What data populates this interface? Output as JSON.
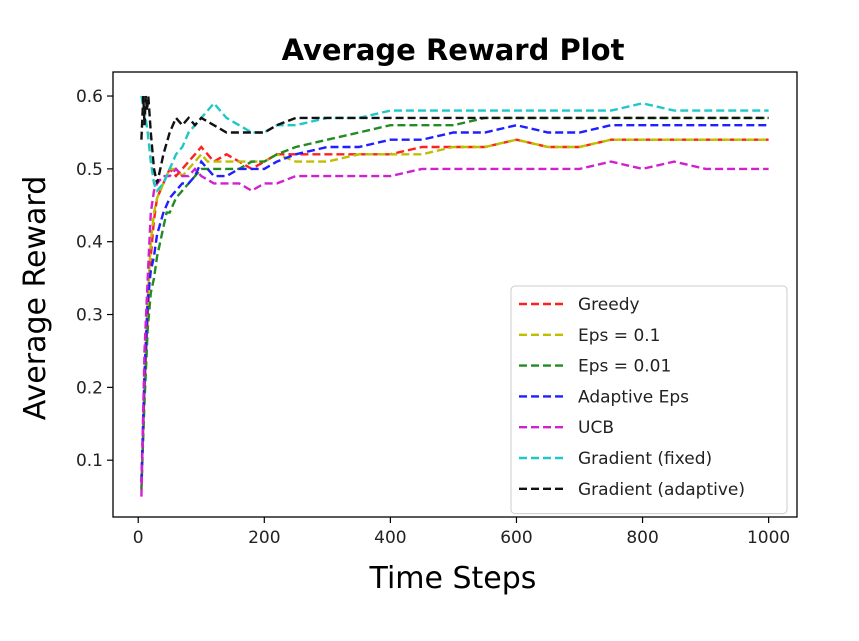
{
  "chart_data": {
    "type": "line",
    "title": "Average Reward Plot",
    "xlabel": "Time Steps",
    "ylabel": "Average Reward",
    "xlim": [
      -40,
      1045
    ],
    "ylim": [
      0.022,
      0.633
    ],
    "xticks": [
      0,
      200,
      400,
      600,
      800,
      1000
    ],
    "yticks": [
      0.1,
      0.2,
      0.3,
      0.4,
      0.5,
      0.6
    ],
    "xtick_labels": [
      "0",
      "200",
      "400",
      "600",
      "800",
      "1000"
    ],
    "ytick_labels": [
      "0.1",
      "0.2",
      "0.3",
      "0.4",
      "0.5",
      "0.6"
    ],
    "line_style": "dashed",
    "grid": false,
    "legend_position": "lower right",
    "series": [
      {
        "name": "Greedy",
        "color": "#ff2020",
        "x": [
          5,
          10,
          15,
          20,
          25,
          30,
          40,
          50,
          60,
          70,
          80,
          90,
          100,
          110,
          120,
          140,
          160,
          180,
          200,
          220,
          250,
          300,
          350,
          400,
          450,
          500,
          550,
          600,
          650,
          700,
          750,
          800,
          850,
          900,
          950,
          1000
        ],
        "y": [
          0.07,
          0.2,
          0.3,
          0.38,
          0.43,
          0.46,
          0.48,
          0.5,
          0.49,
          0.5,
          0.51,
          0.52,
          0.53,
          0.52,
          0.51,
          0.52,
          0.51,
          0.5,
          0.51,
          0.52,
          0.52,
          0.52,
          0.52,
          0.52,
          0.53,
          0.53,
          0.53,
          0.54,
          0.53,
          0.53,
          0.54,
          0.54,
          0.54,
          0.54,
          0.54,
          0.54
        ]
      },
      {
        "name": "Eps = 0.1",
        "color": "#bfbf00",
        "x": [
          5,
          10,
          15,
          20,
          25,
          30,
          40,
          50,
          60,
          70,
          80,
          90,
          100,
          110,
          120,
          140,
          160,
          180,
          200,
          220,
          250,
          300,
          350,
          400,
          450,
          500,
          550,
          600,
          650,
          700,
          750,
          800,
          850,
          900,
          950,
          1000
        ],
        "y": [
          0.06,
          0.2,
          0.32,
          0.4,
          0.44,
          0.46,
          0.48,
          0.5,
          0.5,
          0.49,
          0.5,
          0.51,
          0.52,
          0.51,
          0.51,
          0.51,
          0.51,
          0.51,
          0.51,
          0.52,
          0.51,
          0.51,
          0.52,
          0.52,
          0.52,
          0.53,
          0.53,
          0.54,
          0.53,
          0.53,
          0.54,
          0.54,
          0.54,
          0.54,
          0.54,
          0.54
        ]
      },
      {
        "name": "Eps = 0.01",
        "color": "#228b22",
        "x": [
          5,
          10,
          15,
          20,
          25,
          30,
          35,
          40,
          45,
          50,
          60,
          70,
          80,
          90,
          100,
          120,
          140,
          160,
          180,
          200,
          220,
          250,
          300,
          350,
          400,
          450,
          500,
          550,
          600,
          650,
          700,
          750,
          800,
          850,
          900,
          950,
          1000
        ],
        "y": [
          0.06,
          0.18,
          0.28,
          0.33,
          0.35,
          0.38,
          0.4,
          0.42,
          0.44,
          0.44,
          0.46,
          0.47,
          0.48,
          0.49,
          0.5,
          0.5,
          0.5,
          0.5,
          0.51,
          0.51,
          0.52,
          0.53,
          0.54,
          0.55,
          0.56,
          0.56,
          0.56,
          0.57,
          0.57,
          0.57,
          0.57,
          0.57,
          0.57,
          0.57,
          0.57,
          0.57,
          0.57
        ]
      },
      {
        "name": "Adaptive Eps",
        "color": "#1f1fff",
        "x": [
          5,
          10,
          15,
          20,
          25,
          30,
          40,
          50,
          60,
          70,
          80,
          90,
          100,
          110,
          120,
          140,
          160,
          180,
          200,
          220,
          250,
          300,
          350,
          400,
          450,
          500,
          550,
          600,
          650,
          700,
          750,
          800,
          850,
          900,
          950,
          1000
        ],
        "y": [
          0.07,
          0.22,
          0.32,
          0.36,
          0.38,
          0.41,
          0.44,
          0.46,
          0.47,
          0.48,
          0.48,
          0.49,
          0.51,
          0.5,
          0.49,
          0.49,
          0.5,
          0.5,
          0.5,
          0.51,
          0.52,
          0.53,
          0.53,
          0.54,
          0.54,
          0.55,
          0.55,
          0.56,
          0.55,
          0.55,
          0.56,
          0.56,
          0.56,
          0.56,
          0.56,
          0.56
        ]
      },
      {
        "name": "UCB",
        "color": "#d020d0",
        "x": [
          5,
          10,
          15,
          20,
          25,
          30,
          40,
          50,
          60,
          70,
          80,
          90,
          100,
          120,
          140,
          160,
          180,
          200,
          220,
          250,
          300,
          350,
          400,
          450,
          500,
          550,
          600,
          650,
          700,
          750,
          800,
          850,
          900,
          950,
          1000
        ],
        "y": [
          0.05,
          0.25,
          0.35,
          0.44,
          0.47,
          0.48,
          0.49,
          0.49,
          0.5,
          0.49,
          0.49,
          0.5,
          0.49,
          0.48,
          0.48,
          0.48,
          0.47,
          0.48,
          0.48,
          0.49,
          0.49,
          0.49,
          0.49,
          0.5,
          0.5,
          0.5,
          0.5,
          0.5,
          0.5,
          0.51,
          0.5,
          0.51,
          0.5,
          0.5,
          0.5
        ]
      },
      {
        "name": "Gradient (fixed)",
        "color": "#1ec8c8",
        "x": [
          5,
          10,
          15,
          20,
          25,
          30,
          40,
          50,
          60,
          70,
          80,
          90,
          100,
          110,
          120,
          130,
          140,
          160,
          180,
          200,
          220,
          250,
          300,
          350,
          400,
          450,
          500,
          550,
          600,
          650,
          700,
          750,
          800,
          850,
          900,
          950,
          1000
        ],
        "y": [
          0.6,
          0.58,
          0.55,
          0.51,
          0.48,
          0.47,
          0.48,
          0.5,
          0.52,
          0.53,
          0.55,
          0.56,
          0.57,
          0.58,
          0.59,
          0.58,
          0.57,
          0.56,
          0.55,
          0.55,
          0.56,
          0.56,
          0.57,
          0.57,
          0.58,
          0.58,
          0.58,
          0.58,
          0.58,
          0.58,
          0.58,
          0.58,
          0.59,
          0.58,
          0.58,
          0.58,
          0.58
        ]
      },
      {
        "name": "Gradient (adaptive)",
        "color": "#111111",
        "x": [
          5,
          8,
          10,
          12,
          14,
          16,
          20,
          25,
          30,
          35,
          40,
          50,
          60,
          70,
          80,
          90,
          100,
          120,
          140,
          160,
          180,
          200,
          220,
          250,
          300,
          350,
          400,
          450,
          500,
          550,
          600,
          650,
          700,
          750,
          800,
          850,
          900,
          950,
          1000
        ],
        "y": [
          0.54,
          0.6,
          0.56,
          0.6,
          0.58,
          0.6,
          0.55,
          0.5,
          0.48,
          0.5,
          0.52,
          0.55,
          0.57,
          0.56,
          0.57,
          0.56,
          0.57,
          0.56,
          0.55,
          0.55,
          0.55,
          0.55,
          0.56,
          0.57,
          0.57,
          0.57,
          0.57,
          0.57,
          0.57,
          0.57,
          0.57,
          0.57,
          0.57,
          0.57,
          0.57,
          0.57,
          0.57,
          0.57,
          0.57
        ]
      }
    ]
  }
}
